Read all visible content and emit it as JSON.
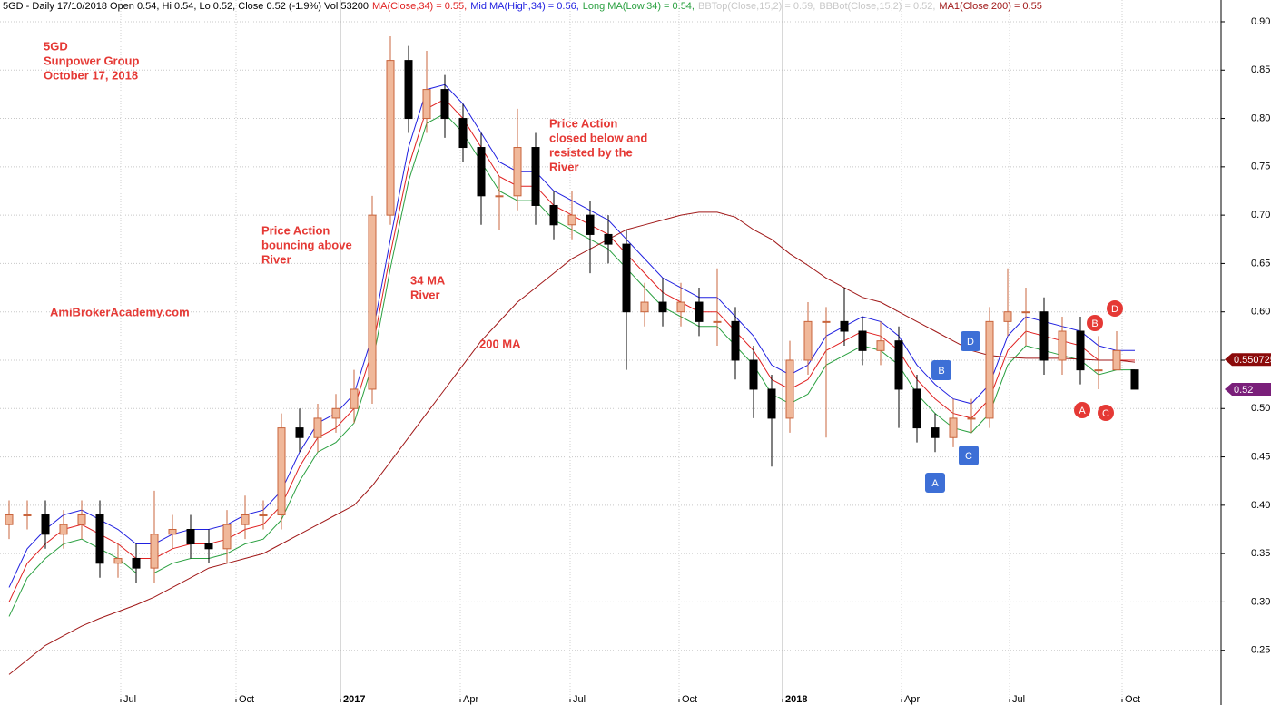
{
  "chart_data": {
    "type": "candlestick",
    "info": "5GD - Daily 17/10/2018 Open 0.54, Hi 0.54, Lo 0.52, Close 0.52 (-1.9%) Vol 53200",
    "bollinger_labels": [
      "BBTop(Close,15,2) = 0.59,",
      "BBBot(Close,15,2) = 0.52,"
    ],
    "x": [
      0.5,
      1.5,
      2.5,
      3.5,
      4.5,
      5.5,
      6.5,
      7.5,
      8.5,
      9.5,
      10.5,
      11.5,
      12.5,
      13.5,
      14.5,
      15.5,
      16.5,
      17.5,
      18.5,
      19.5,
      20.5,
      21.5,
      22.5,
      23.5,
      24.5,
      25.5,
      26.5,
      27.5,
      28.5,
      29.5,
      30.5,
      31.5,
      32.5,
      33.5,
      34.5,
      35.5,
      36.5,
      37.5,
      38.5,
      39.5,
      40.5,
      41.5,
      42.5,
      43.5,
      44.5,
      45.5,
      46.5,
      47.5,
      48.5,
      49.5,
      50.5,
      51.5,
      52.5,
      53.5,
      54.5,
      55.5,
      56.5,
      57.5,
      58.5,
      59.5,
      60.5,
      61.5,
      62.5
    ],
    "open": [
      0.38,
      0.39,
      0.39,
      0.37,
      0.38,
      0.39,
      0.34,
      0.345,
      0.335,
      0.37,
      0.375,
      0.36,
      0.355,
      0.38,
      0.39,
      0.39,
      0.48,
      0.47,
      0.49,
      0.5,
      0.52,
      0.7,
      0.86,
      0.8,
      0.83,
      0.8,
      0.77,
      0.72,
      0.72,
      0.77,
      0.71,
      0.69,
      0.7,
      0.68,
      0.67,
      0.6,
      0.61,
      0.6,
      0.61,
      0.59,
      0.59,
      0.55,
      0.52,
      0.49,
      0.55,
      0.59,
      0.59,
      0.58,
      0.56,
      0.57,
      0.52,
      0.48,
      0.47,
      0.49,
      0.49,
      0.59,
      0.6,
      0.6,
      0.55,
      0.58,
      0.54,
      0.54,
      0.54
    ],
    "high": [
      0.405,
      0.405,
      0.405,
      0.395,
      0.405,
      0.405,
      0.36,
      0.36,
      0.415,
      0.39,
      0.39,
      0.375,
      0.395,
      0.41,
      0.405,
      0.495,
      0.5,
      0.505,
      0.515,
      0.54,
      0.72,
      0.885,
      0.875,
      0.87,
      0.845,
      0.815,
      0.785,
      0.74,
      0.81,
      0.785,
      0.725,
      0.725,
      0.715,
      0.7,
      0.685,
      0.63,
      0.635,
      0.63,
      0.625,
      0.645,
      0.605,
      0.565,
      0.535,
      0.57,
      0.61,
      0.605,
      0.625,
      0.595,
      0.59,
      0.585,
      0.535,
      0.495,
      0.51,
      0.51,
      0.605,
      0.645,
      0.625,
      0.615,
      0.595,
      0.595,
      0.575,
      0.58,
      0.54
    ],
    "low": [
      0.365,
      0.375,
      0.355,
      0.355,
      0.365,
      0.325,
      0.325,
      0.32,
      0.32,
      0.355,
      0.345,
      0.34,
      0.34,
      0.365,
      0.375,
      0.375,
      0.455,
      0.455,
      0.475,
      0.485,
      0.505,
      0.69,
      0.785,
      0.785,
      0.78,
      0.755,
      0.69,
      0.685,
      0.705,
      0.69,
      0.675,
      0.675,
      0.64,
      0.65,
      0.54,
      0.585,
      0.585,
      0.585,
      0.575,
      0.565,
      0.53,
      0.49,
      0.44,
      0.475,
      0.535,
      0.47,
      0.565,
      0.545,
      0.545,
      0.48,
      0.465,
      0.455,
      0.46,
      0.475,
      0.48,
      0.575,
      0.565,
      0.535,
      0.535,
      0.525,
      0.52,
      0.54,
      0.52
    ],
    "close": [
      0.39,
      0.39,
      0.37,
      0.38,
      0.39,
      0.34,
      0.345,
      0.335,
      0.37,
      0.375,
      0.36,
      0.355,
      0.38,
      0.39,
      0.39,
      0.48,
      0.47,
      0.49,
      0.5,
      0.52,
      0.7,
      0.86,
      0.8,
      0.83,
      0.8,
      0.77,
      0.72,
      0.72,
      0.77,
      0.71,
      0.69,
      0.7,
      0.68,
      0.67,
      0.6,
      0.61,
      0.6,
      0.61,
      0.59,
      0.59,
      0.55,
      0.52,
      0.49,
      0.55,
      0.59,
      0.59,
      0.58,
      0.56,
      0.57,
      0.52,
      0.48,
      0.47,
      0.49,
      0.49,
      0.59,
      0.6,
      0.6,
      0.55,
      0.58,
      0.54,
      0.54,
      0.56,
      0.52
    ],
    "up_color": "#c8643c",
    "down_color": "#000000",
    "series": [
      {
        "name": "MA(Close,34) = 0.55,",
        "color": "#e02020",
        "values": [
          0.3,
          0.34,
          0.36,
          0.375,
          0.38,
          0.37,
          0.36,
          0.345,
          0.345,
          0.355,
          0.36,
          0.36,
          0.365,
          0.375,
          0.38,
          0.4,
          0.44,
          0.47,
          0.48,
          0.5,
          0.56,
          0.66,
          0.75,
          0.81,
          0.82,
          0.8,
          0.77,
          0.74,
          0.73,
          0.73,
          0.71,
          0.7,
          0.69,
          0.68,
          0.66,
          0.64,
          0.62,
          0.61,
          0.6,
          0.6,
          0.58,
          0.56,
          0.53,
          0.52,
          0.53,
          0.56,
          0.57,
          0.58,
          0.575,
          0.56,
          0.53,
          0.51,
          0.495,
          0.49,
          0.51,
          0.56,
          0.58,
          0.575,
          0.57,
          0.565,
          0.55,
          0.55,
          0.55
        ]
      },
      {
        "name": "Mid MA(High,34) = 0.56,",
        "color": "#2020e0",
        "values": [
          0.315,
          0.355,
          0.375,
          0.39,
          0.395,
          0.385,
          0.375,
          0.36,
          0.36,
          0.37,
          0.375,
          0.375,
          0.38,
          0.39,
          0.395,
          0.415,
          0.455,
          0.485,
          0.495,
          0.515,
          0.575,
          0.675,
          0.77,
          0.83,
          0.835,
          0.815,
          0.785,
          0.755,
          0.745,
          0.745,
          0.725,
          0.715,
          0.705,
          0.695,
          0.675,
          0.655,
          0.635,
          0.625,
          0.615,
          0.615,
          0.595,
          0.575,
          0.545,
          0.535,
          0.545,
          0.575,
          0.585,
          0.595,
          0.59,
          0.575,
          0.545,
          0.525,
          0.51,
          0.505,
          0.525,
          0.575,
          0.595,
          0.59,
          0.585,
          0.58,
          0.565,
          0.56,
          0.56
        ]
      },
      {
        "name": "Long MA(Low,34) = 0.54,",
        "color": "#2aa040",
        "values": [
          0.285,
          0.325,
          0.345,
          0.36,
          0.365,
          0.355,
          0.345,
          0.33,
          0.33,
          0.34,
          0.345,
          0.345,
          0.35,
          0.36,
          0.365,
          0.385,
          0.425,
          0.455,
          0.465,
          0.485,
          0.545,
          0.645,
          0.735,
          0.795,
          0.805,
          0.785,
          0.755,
          0.725,
          0.715,
          0.715,
          0.695,
          0.685,
          0.675,
          0.665,
          0.645,
          0.625,
          0.605,
          0.595,
          0.585,
          0.585,
          0.565,
          0.545,
          0.515,
          0.505,
          0.515,
          0.545,
          0.555,
          0.565,
          0.56,
          0.545,
          0.515,
          0.495,
          0.48,
          0.475,
          0.495,
          0.545,
          0.565,
          0.56,
          0.555,
          0.55,
          0.535,
          0.54,
          0.54
        ]
      },
      {
        "name": "MA1(Close,200) = 0.55",
        "color": "#a01818",
        "values": [
          0.225,
          0.24,
          0.255,
          0.265,
          0.275,
          0.283,
          0.29,
          0.297,
          0.305,
          0.315,
          0.325,
          0.335,
          0.34,
          0.345,
          0.35,
          0.36,
          0.37,
          0.38,
          0.39,
          0.4,
          0.42,
          0.445,
          0.47,
          0.495,
          0.52,
          0.545,
          0.57,
          0.59,
          0.61,
          0.625,
          0.64,
          0.655,
          0.665,
          0.675,
          0.685,
          0.69,
          0.695,
          0.7,
          0.703,
          0.703,
          0.698,
          0.685,
          0.675,
          0.66,
          0.648,
          0.635,
          0.625,
          0.615,
          0.61,
          0.6,
          0.59,
          0.58,
          0.57,
          0.56,
          0.555,
          0.553,
          0.552,
          0.552,
          0.552,
          0.551,
          0.55,
          0.55,
          0.548
        ]
      }
    ],
    "xlim": [
      0,
      67.25
    ],
    "xticks": [
      {
        "value": 6.65,
        "label": "Jul"
      },
      {
        "value": 13,
        "label": "Oct"
      },
      {
        "value": 18.75,
        "label": "2017"
      },
      {
        "value": 25.35,
        "label": "Apr"
      },
      {
        "value": 31.4,
        "label": "Jul"
      },
      {
        "value": 37.4,
        "label": "Oct"
      },
      {
        "value": 43.1,
        "label": "2018"
      },
      {
        "value": 49.65,
        "label": "Apr"
      },
      {
        "value": 55.6,
        "label": "Jul"
      },
      {
        "value": 61.8,
        "label": "Oct"
      }
    ],
    "ylim": [
      0.2,
      0.9225
    ],
    "yticks": [
      0.25,
      {
        "value": 0.3,
        "label": "0.30"
      },
      0.35,
      {
        "value": 0.4,
        "label": "0.40"
      },
      0.45,
      {
        "value": 0.5,
        "label": "0.50"
      },
      0.55,
      {
        "value": 0.6,
        "label": "0.60"
      },
      0.65,
      {
        "value": 0.7,
        "label": "0.70"
      },
      0.75,
      {
        "value": 0.8,
        "label": "0.80"
      },
      0.85,
      {
        "value": 0.9,
        "label": "0.90"
      }
    ],
    "grid": true,
    "price_tags": [
      {
        "value": 0.550725,
        "color": "#8b0a0a"
      },
      {
        "value": 0.52,
        "color": "#7a1f7a"
      }
    ],
    "annotations": [
      {
        "lines": [
          "5GD",
          "Sunpower Group",
          "October 17, 2018"
        ]
      },
      {
        "lines": [
          "Price Action",
          "bouncing above",
          "River"
        ]
      },
      {
        "lines": [
          "34 MA",
          "River"
        ]
      },
      {
        "lines": [
          "200 MA"
        ]
      },
      {
        "lines": [
          "AmiBrokerAcademy.com"
        ]
      },
      {
        "lines": [
          "Price Action",
          "closed below and",
          "resisted by the",
          "River"
        ]
      }
    ],
    "annotation_color": "#e53935",
    "blue_markers": [
      "A",
      "B",
      "C",
      "D"
    ],
    "red_markers": [
      "A",
      "B",
      "C",
      "D"
    ]
  }
}
